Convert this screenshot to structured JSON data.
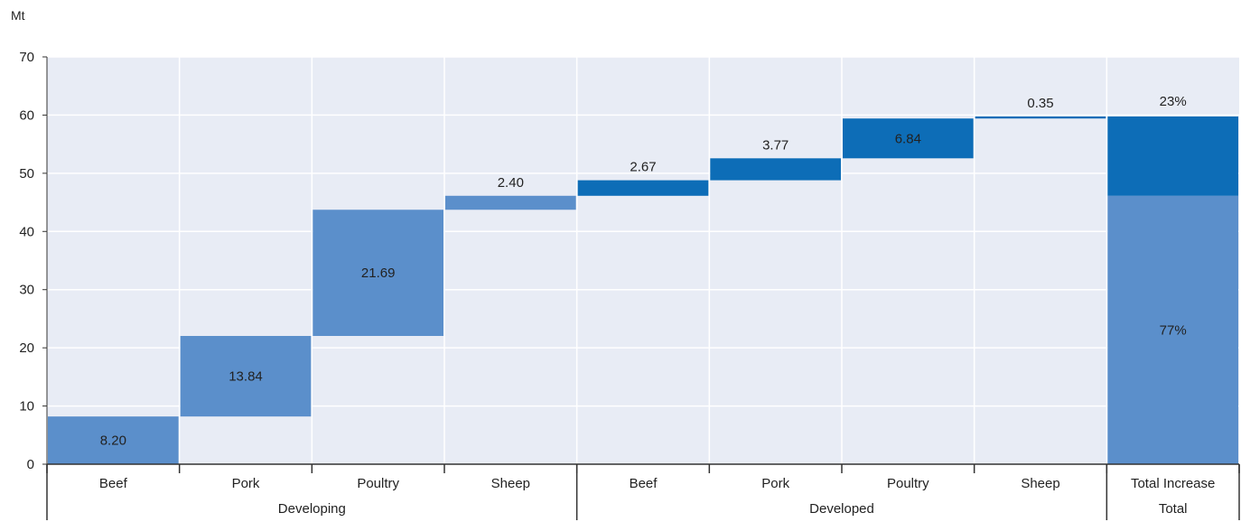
{
  "chart_data": {
    "type": "bar",
    "subtype": "waterfall",
    "ylabel": "Mt",
    "ylim": [
      0,
      70
    ],
    "yticks": [
      0,
      10,
      20,
      30,
      40,
      50,
      60,
      70
    ],
    "grid": true,
    "categories": [
      "Beef",
      "Pork",
      "Poultry",
      "Sheep",
      "Beef",
      "Pork",
      "Poultry",
      "Sheep",
      "Total Increase"
    ],
    "groups": [
      {
        "label": "Developing",
        "start": 0,
        "end": 3
      },
      {
        "label": "Developed",
        "start": 4,
        "end": 7
      },
      {
        "label": "Total",
        "start": 8,
        "end": 8
      }
    ],
    "increments": [
      {
        "group": "Developing",
        "category": "Beef",
        "value": 8.2,
        "label": "8.20"
      },
      {
        "group": "Developing",
        "category": "Pork",
        "value": 13.84,
        "label": "13.84"
      },
      {
        "group": "Developing",
        "category": "Poultry",
        "value": 21.69,
        "label": "21.69"
      },
      {
        "group": "Developing",
        "category": "Sheep",
        "value": 2.4,
        "label": "2.40"
      },
      {
        "group": "Developed",
        "category": "Beef",
        "value": 2.67,
        "label": "2.67"
      },
      {
        "group": "Developed",
        "category": "Pork",
        "value": 3.77,
        "label": "3.77"
      },
      {
        "group": "Developed",
        "category": "Poultry",
        "value": 6.84,
        "label": "6.84"
      },
      {
        "group": "Developed",
        "category": "Sheep",
        "value": 0.35,
        "label": "0.35"
      }
    ],
    "total": {
      "category": "Total Increase",
      "segments": [
        {
          "group": "Developing",
          "value": 46.13,
          "label": "77%"
        },
        {
          "group": "Developed",
          "value": 13.63,
          "label": "23%"
        }
      ]
    },
    "colors": {
      "developing": "#5b8fcb",
      "developed": "#0d6db7",
      "background": "#e8ecf5",
      "grid": "#ffffff",
      "axis": "#333333"
    }
  }
}
